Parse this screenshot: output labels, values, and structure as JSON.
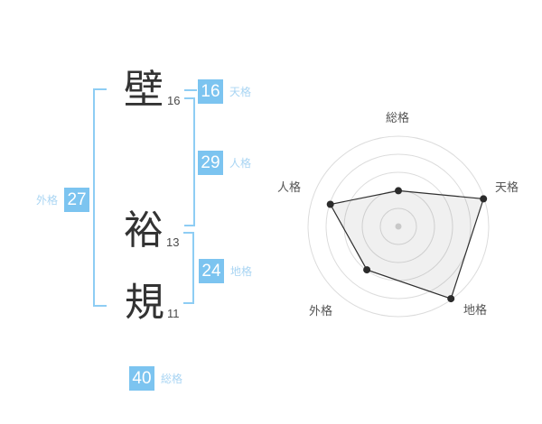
{
  "name": {
    "surname": [
      {
        "char": "壁",
        "strokes": "16"
      }
    ],
    "given": [
      {
        "char": "裕",
        "strokes": "13"
      },
      {
        "char": "規",
        "strokes": "11"
      }
    ]
  },
  "kakusu": {
    "tenkaku": {
      "label": "天格",
      "value": "16"
    },
    "jinkaku": {
      "label": "人格",
      "value": "29"
    },
    "chikaku": {
      "label": "地格",
      "value": "24"
    },
    "gaikaku": {
      "label": "外格",
      "value": "27"
    },
    "soukaku": {
      "label": "総格",
      "value": "40"
    }
  },
  "colors": {
    "box_blue": "#7cc4f0",
    "label_blue": "#a9d5f3",
    "bracket_blue": "#8ecdf4",
    "kanji_dark": "#333333",
    "ring_grey": "#dcdcdc",
    "line_dark": "#2f2f2f"
  },
  "chart_data": {
    "type": "radar",
    "categories": [
      "総格",
      "天格",
      "地格",
      "外格",
      "人格"
    ],
    "values": [
      40,
      100,
      100,
      60,
      80
    ],
    "max": 100,
    "rings": 5,
    "start_angle_deg": 90,
    "direction": "clockwise",
    "grid": "circular",
    "legend": "none",
    "title": ""
  }
}
